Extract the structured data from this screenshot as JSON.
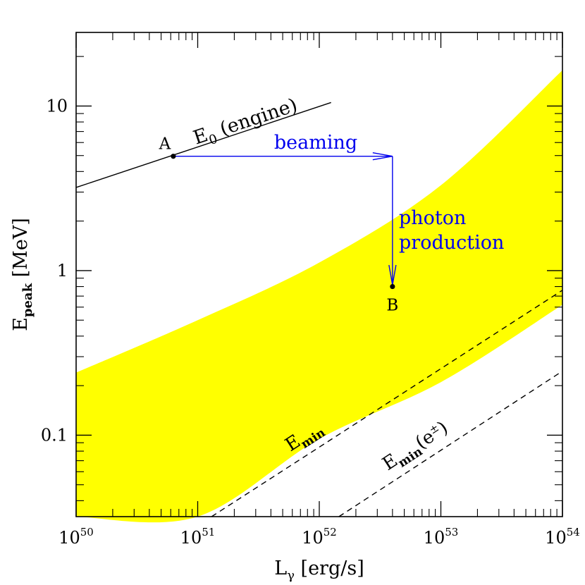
{
  "chart_data": {
    "type": "line",
    "x_scale": "log",
    "y_scale": "log",
    "xlim": [
      1e+50,
      1e+54
    ],
    "ylim": [
      0.032,
      28
    ],
    "grid": false,
    "xlabel": {
      "main": "L",
      "sub": "γ",
      "unit": "[erg/s]"
    },
    "ylabel": {
      "main": "E",
      "sub": "peak",
      "unit": "[MeV]"
    },
    "x_ticks": [
      {
        "value": 1e+50,
        "base": "10",
        "exp": "50"
      },
      {
        "value": 1e+51,
        "base": "10",
        "exp": "51"
      },
      {
        "value": 1e+52,
        "base": "10",
        "exp": "52"
      },
      {
        "value": 1e+53,
        "base": "10",
        "exp": "53"
      },
      {
        "value": 1e+54,
        "base": "10",
        "exp": "54"
      }
    ],
    "y_ticks": [
      {
        "value": 0.1,
        "label": "0.1"
      },
      {
        "value": 1,
        "label": "1"
      },
      {
        "value": 10,
        "label": "10"
      }
    ],
    "band": {
      "color": "#ffff00",
      "upper": [
        [
          1e+50,
          0.24
        ],
        [
          1e+51,
          0.5
        ],
        [
          1e+52,
          1.12
        ],
        [
          1e+53,
          3.3
        ],
        [
          1e+54,
          16.5
        ]
      ],
      "lower": [
        [
          1e+50,
          0.032
        ],
        [
          1e+50,
          0.032
        ],
        [
          1e+51,
          0.032
        ],
        [
          1e+52,
          0.095
        ],
        [
          1e+53,
          0.21
        ],
        [
          1e+54,
          0.62
        ]
      ]
    },
    "series": [
      {
        "name": "E0 (engine)",
        "label": {
          "main": "E",
          "sub": "0",
          "rest": " (engine)"
        },
        "style": "solid",
        "color": "#000000",
        "points": [
          [
            1e+50,
            3.2
          ],
          [
            1.25e+52,
            10.5
          ]
        ]
      },
      {
        "name": "Emin",
        "label": {
          "main": "E",
          "sub": "min",
          "rest": ""
        },
        "style": "dashed",
        "color": "#000000",
        "points": [
          [
            1.3e+51,
            0.032
          ],
          [
            1e+54,
            0.76
          ]
        ]
      },
      {
        "name": "Emin(e±)",
        "label": {
          "main": "E",
          "sub": "min",
          "rest": "(e",
          "sup": "±",
          "close": ")"
        },
        "style": "dashed",
        "color": "#000000",
        "points": [
          [
            1.45e+52,
            0.032
          ],
          [
            1e+54,
            0.245
          ]
        ]
      }
    ],
    "points": [
      {
        "name": "A",
        "x": 6.3e+50,
        "y": 4.95
      },
      {
        "name": "B",
        "x": 4e+52,
        "y": 0.8
      }
    ],
    "annotations": {
      "color": "#0000ee",
      "beaming": {
        "text": "beaming",
        "from": [
          6.3e+50,
          4.95
        ],
        "to": [
          4e+52,
          4.95
        ]
      },
      "photon": {
        "line1": "photon",
        "line2": "production",
        "from": [
          4e+52,
          4.95
        ],
        "to": [
          4e+52,
          0.82
        ]
      }
    }
  }
}
